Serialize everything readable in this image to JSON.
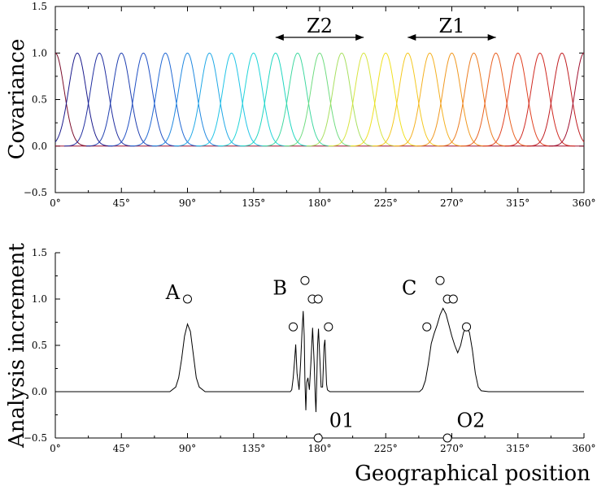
{
  "chart_data": [
    {
      "type": "line",
      "ylabel": "Covariance",
      "xlim": [
        0,
        360
      ],
      "ylim": [
        -0.5,
        1.5
      ],
      "x_ticks": [
        "0°",
        "45°",
        "90°",
        "135°",
        "180°",
        "225°",
        "270°",
        "315°",
        "360°"
      ],
      "y_ticks": [
        "−0.5",
        "0.0",
        "0.5",
        "1.0",
        "1.5"
      ],
      "peak_centers_deg": [
        0,
        15,
        30,
        45,
        60,
        75,
        90,
        105,
        120,
        135,
        150,
        165,
        180,
        195,
        210,
        225,
        240,
        255,
        270,
        285,
        300,
        315,
        330,
        345,
        360
      ],
      "peak_height": 1.0,
      "peak_width_deg": 6,
      "colors": [
        "#7a0c2a",
        "#1a1a8c",
        "#202ea0",
        "#1f3fb0",
        "#2050c4",
        "#2068d4",
        "#2088e0",
        "#20a8e6",
        "#20c4e6",
        "#20d4d8",
        "#20d6c0",
        "#40d8a0",
        "#70dc80",
        "#a8e060",
        "#d8e440",
        "#f0e020",
        "#f4c820",
        "#f4b020",
        "#f09820",
        "#ec7c20",
        "#e86020",
        "#e04020",
        "#d02820",
        "#c01c20",
        "#a01030"
      ],
      "annotations": [
        {
          "text": "Z2",
          "x_range": [
            150,
            210
          ]
        },
        {
          "text": "Z1",
          "x_range": [
            240,
            300
          ]
        }
      ]
    },
    {
      "type": "line",
      "ylabel": "Analysis increment",
      "xlabel": "Geographical position",
      "xlim": [
        0,
        360
      ],
      "ylim": [
        -0.5,
        1.5
      ],
      "x_ticks": [
        "0°",
        "45°",
        "90°",
        "135°",
        "180°",
        "225°",
        "270°",
        "315°",
        "360°"
      ],
      "y_ticks": [
        "−0.5",
        "0.0",
        "0.5",
        "1.0",
        "1.5"
      ],
      "curve": {
        "x": [
          0,
          78,
          82,
          84,
          86,
          88,
          90,
          92,
          94,
          96,
          98,
          102,
          160,
          161,
          162,
          163,
          163.7,
          164.6,
          166,
          167,
          168,
          168.8,
          169.5,
          170,
          170.6,
          171.2,
          172,
          173,
          174,
          175.2,
          176.3,
          177,
          177.5,
          178,
          178.6,
          179.2,
          180,
          181,
          182,
          182.6,
          183,
          183.6,
          184.2,
          184.7,
          185.3,
          186,
          187,
          188,
          190,
          248,
          250,
          252,
          254,
          256,
          258,
          260,
          262,
          264,
          266,
          268,
          270,
          272,
          274,
          276,
          278,
          280,
          282,
          284,
          286,
          288,
          290,
          295,
          360
        ],
        "y": [
          0,
          0,
          0.05,
          0.15,
          0.35,
          0.6,
          0.73,
          0.65,
          0.4,
          0.15,
          0.05,
          0,
          0,
          0.02,
          0.15,
          0.35,
          0.51,
          0.2,
          0.02,
          0.3,
          0.65,
          0.87,
          0.6,
          0.1,
          -0.2,
          0.1,
          0.15,
          0.02,
          0.3,
          0.69,
          0.3,
          -0.05,
          -0.22,
          0.1,
          0.5,
          0.68,
          0.4,
          0.05,
          0.05,
          0.3,
          0.49,
          0.56,
          0.3,
          0.08,
          0.02,
          0.01,
          0,
          0,
          0,
          0,
          0.03,
          0.12,
          0.3,
          0.52,
          0.63,
          0.72,
          0.83,
          0.9,
          0.84,
          0.72,
          0.6,
          0.5,
          0.42,
          0.5,
          0.64,
          0.7,
          0.64,
          0.45,
          0.2,
          0.05,
          0.01,
          0,
          0
        ]
      },
      "observations": [
        {
          "x": 90,
          "y": 1.0
        },
        {
          "x": 162,
          "y": 0.7
        },
        {
          "x": 170,
          "y": 1.2
        },
        {
          "x": 175,
          "y": 1.0
        },
        {
          "x": 179,
          "y": 1.0
        },
        {
          "x": 186,
          "y": 0.7
        },
        {
          "x": 253,
          "y": 0.7
        },
        {
          "x": 262,
          "y": 1.2
        },
        {
          "x": 267,
          "y": 1.0
        },
        {
          "x": 271,
          "y": 1.0
        },
        {
          "x": 280,
          "y": 0.7
        }
      ],
      "obs_markers_bottom": [
        {
          "x": 179,
          "y": -0.5
        },
        {
          "x": 267,
          "y": -0.5
        }
      ],
      "labels": [
        {
          "text": "A",
          "x": 80,
          "y": 1.0
        },
        {
          "text": "B",
          "x": 153,
          "y": 1.05
        },
        {
          "text": "C",
          "x": 241,
          "y": 1.05
        },
        {
          "text": "01",
          "x": 195,
          "y": -0.38
        },
        {
          "text": "O2",
          "x": 283,
          "y": -0.38
        }
      ]
    }
  ]
}
